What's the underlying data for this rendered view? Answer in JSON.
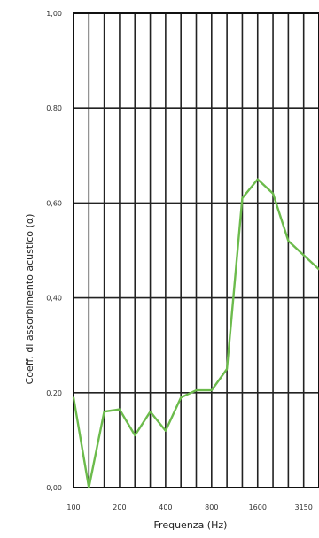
{
  "chart_data": {
    "type": "line",
    "xlabel": "Frequenza (Hz)",
    "ylabel": "Coeff. di assorbimento acustico (α)",
    "ylim": [
      0,
      1
    ],
    "y_ticks": [
      "0,00",
      "0,20",
      "0,40",
      "0,60",
      "0,80",
      "1,00"
    ],
    "x_tick_labels": [
      "100",
      "200",
      "400",
      "800",
      "1600",
      "3150"
    ],
    "x": [
      "100",
      "125",
      "160",
      "200",
      "250",
      "315",
      "400",
      "500",
      "630",
      "800",
      "1000",
      "1250",
      "1600",
      "2000",
      "2500",
      "3150",
      "4000"
    ],
    "series": [
      {
        "color": "#6cbb4c",
        "values": [
          0.19,
          0.0,
          0.16,
          0.165,
          0.11,
          0.16,
          0.12,
          0.19,
          0.205,
          0.205,
          0.25,
          0.61,
          0.65,
          0.62,
          0.52,
          0.49,
          0.46
        ]
      }
    ],
    "grid": true
  }
}
